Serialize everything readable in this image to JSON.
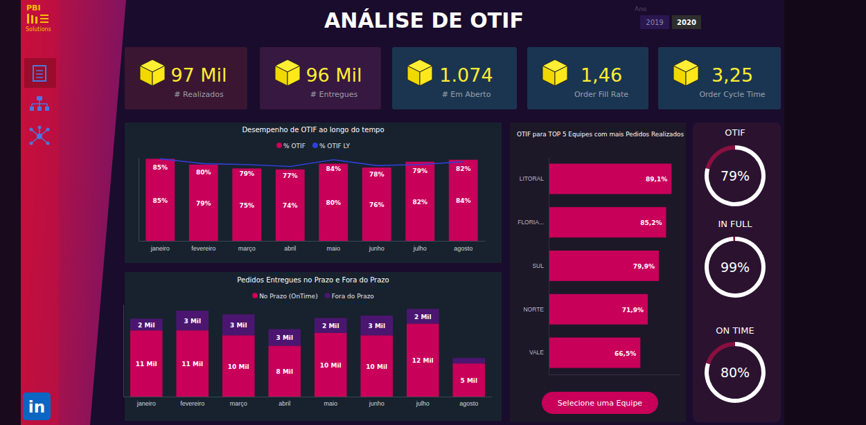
{
  "header": {
    "logo_top": "PBI",
    "logo_bottom": "Solutions",
    "title": "ANÁLISE DE OTIF",
    "year_label": "Ano",
    "years": [
      "2019",
      "2020"
    ],
    "selected_year": "2020",
    "linkedin": "in"
  },
  "kpis": [
    {
      "value": "97 Mil",
      "label": "# Realizados"
    },
    {
      "value": "96 Mil",
      "label": "# Entregues"
    },
    {
      "value": "1.074",
      "label": "# Em Aberto"
    },
    {
      "value": "1,46",
      "label": "Order Fill Rate"
    },
    {
      "value": "3,25",
      "label": "Order Cycle Time"
    }
  ],
  "chart_data": [
    {
      "type": "bar",
      "title": "Desempenho de OTIF ao longo do tempo",
      "categories": [
        "janeiro",
        "fevereiro",
        "março",
        "abril",
        "maio",
        "junho",
        "julho",
        "agosto"
      ],
      "series": [
        {
          "name": "% OTIF",
          "type": "bar",
          "color": "#c8005a",
          "values": [
            85,
            79,
            75,
            74,
            80,
            76,
            82,
            84
          ],
          "value_labels": [
            "85%",
            "79%",
            "75%",
            "74%",
            "80%",
            "76%",
            "82%",
            "84%"
          ]
        },
        {
          "name": "% OTIF LY",
          "type": "line",
          "color": "#2e3fd6",
          "values": [
            85,
            80,
            79,
            77,
            84,
            78,
            79,
            82
          ],
          "value_labels": [
            "85%",
            "80%",
            "79%",
            "77%",
            "84%",
            "78%",
            "79%",
            "82%"
          ]
        }
      ],
      "ylim": [
        0,
        86
      ],
      "yticks": [],
      "tick_labels": "x",
      "data_labels": true,
      "legend": "top"
    },
    {
      "type": "bar",
      "stacked": true,
      "title": "Pedidos Entregues no Prazo e Fora do Prazo",
      "categories": [
        "janeiro",
        "fevereiro",
        "março",
        "abril",
        "maio",
        "junho",
        "julho",
        "agosto"
      ],
      "series": [
        {
          "name": "No Prazo (OnTime)",
          "color": "#c8005a",
          "values": [
            10.8,
            10.8,
            10.0,
            8.3,
            10.4,
            10.0,
            11.9,
            5.4
          ],
          "value_labels": [
            "11 Mil",
            "11 Mil",
            "10 Mil",
            "8 Mil",
            "10 Mil",
            "10 Mil",
            "12 Mil",
            "5 Mil"
          ]
        },
        {
          "name": "Fora do Prazo",
          "color": "#4b1670",
          "values": [
            1.9,
            3.2,
            3.4,
            2.7,
            2.4,
            3.2,
            2.4,
            0.9
          ],
          "value_labels": [
            "2 Mil",
            "3 Mil",
            "3 Mil",
            "3 Mil",
            "2 Mil",
            "3 Mil",
            "2 Mil",
            null
          ]
        }
      ],
      "ylim": [
        0,
        15
      ],
      "yticks": [],
      "tick_labels": "x",
      "data_labels": true,
      "legend": "top"
    },
    {
      "type": "bar",
      "orientation": "horizontal",
      "title": "OTIF para TOP 5 Equipes com mais Pedidos Realizados",
      "categories": [
        "LITORAL",
        "FLORIA...",
        "SUL",
        "NORTE",
        "VALE"
      ],
      "values": [
        89.1,
        85.2,
        79.9,
        71.9,
        66.5
      ],
      "value_labels": [
        "89,1%",
        "85,2%",
        "79,9%",
        "71,9%",
        "66,5%"
      ],
      "color": "#c8005a",
      "xlim": [
        0,
        95
      ],
      "xticks": [],
      "tick_labels": "y",
      "data_labels": true
    }
  ],
  "gauges": [
    {
      "title": "OTIF",
      "value": 79,
      "label": "79%",
      "range": [
        0,
        100
      ]
    },
    {
      "title": "IN FULL",
      "value": 99,
      "label": "99%",
      "range": [
        0,
        100
      ]
    },
    {
      "title": "ON TIME",
      "value": 80,
      "label": "80%",
      "range": [
        0,
        100
      ]
    }
  ],
  "button": "Selecione uma Equipe"
}
